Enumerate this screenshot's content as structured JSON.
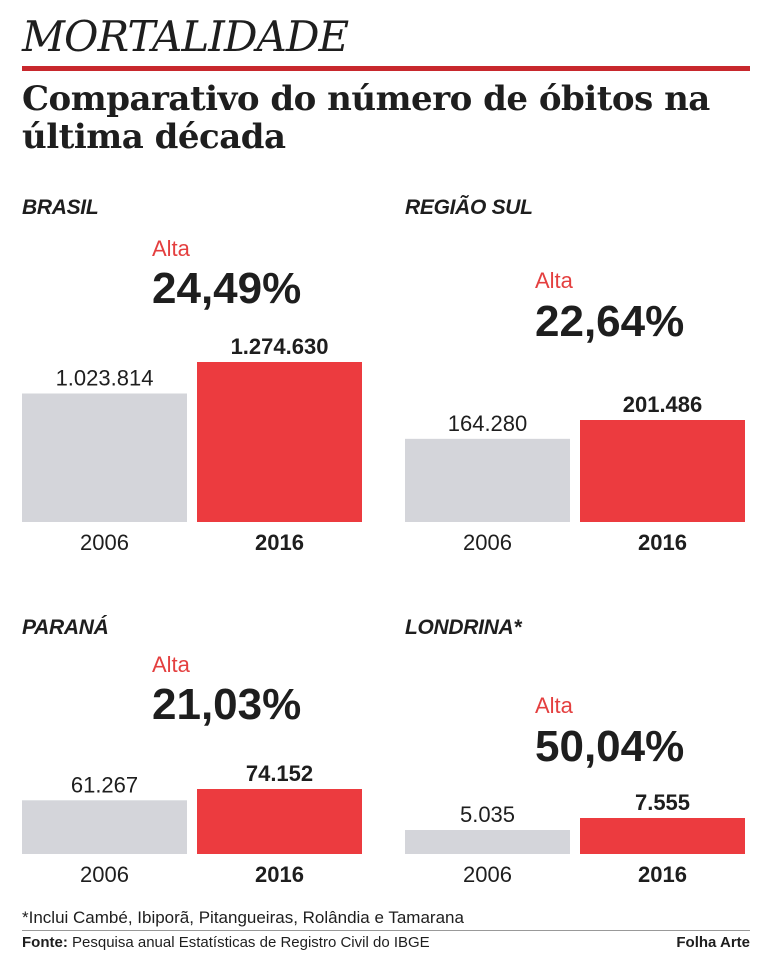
{
  "header": {
    "kicker": "MORTALIDADE",
    "headline": "Comparativo do número de óbitos na última década"
  },
  "colors": {
    "bar_2006": "#d4d5da",
    "bar_2016": "#ec3b3f",
    "accent_rule": "#c8282d",
    "alta": "#e43f3f"
  },
  "chart_data": [
    {
      "type": "bar",
      "title": "BRASIL",
      "categories": [
        "2006",
        "2016"
      ],
      "values": [
        1023814,
        1274630
      ],
      "value_labels": [
        "1.023.814",
        "1.274.630"
      ],
      "change_label": "Alta",
      "change_value": "24,49%"
    },
    {
      "type": "bar",
      "title": "REGIÃO SUL",
      "categories": [
        "2006",
        "2016"
      ],
      "values": [
        164280,
        201486
      ],
      "value_labels": [
        "164.280",
        "201.486"
      ],
      "change_label": "Alta",
      "change_value": "22,64%"
    },
    {
      "type": "bar",
      "title": "PARANÁ",
      "categories": [
        "2006",
        "2016"
      ],
      "values": [
        61267,
        74152
      ],
      "value_labels": [
        "61.267",
        "74.152"
      ],
      "change_label": "Alta",
      "change_value": "21,03%"
    },
    {
      "type": "bar",
      "title": "LONDRINA*",
      "categories": [
        "2006",
        "2016"
      ],
      "values": [
        5035,
        7555
      ],
      "value_labels": [
        "5.035",
        "7.555"
      ],
      "change_label": "Alta",
      "change_value": "50,04%"
    }
  ],
  "footer": {
    "footnote": "*Inclui Cambé, Ibiporã, Pitangueiras, Rolândia e Tamarana",
    "source_label": "Fonte:",
    "source_text": "Pesquisa anual Estatísticas de Registro Civil do IBGE",
    "credit": "Folha Arte"
  }
}
